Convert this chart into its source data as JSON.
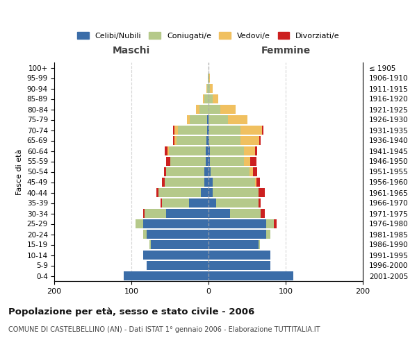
{
  "age_groups": [
    "0-4",
    "5-9",
    "10-14",
    "15-19",
    "20-24",
    "25-29",
    "30-34",
    "35-39",
    "40-44",
    "45-49",
    "50-54",
    "55-59",
    "60-64",
    "65-69",
    "70-74",
    "75-79",
    "80-84",
    "85-89",
    "90-94",
    "95-99",
    "100+"
  ],
  "birth_years": [
    "2001-2005",
    "1996-2000",
    "1991-1995",
    "1986-1990",
    "1981-1985",
    "1976-1980",
    "1971-1975",
    "1966-1970",
    "1961-1965",
    "1956-1960",
    "1951-1955",
    "1946-1950",
    "1941-1945",
    "1936-1940",
    "1931-1935",
    "1926-1930",
    "1921-1925",
    "1916-1920",
    "1911-1915",
    "1906-1910",
    "≤ 1905"
  ],
  "males_celibi": [
    110,
    80,
    85,
    75,
    80,
    85,
    55,
    25,
    10,
    5,
    5,
    4,
    4,
    3,
    2,
    2,
    0,
    0,
    0,
    0,
    0
  ],
  "males_coniugati": [
    0,
    0,
    0,
    2,
    5,
    10,
    28,
    35,
    55,
    52,
    50,
    46,
    47,
    38,
    38,
    22,
    12,
    5,
    2,
    1,
    0
  ],
  "males_vedovi": [
    0,
    0,
    0,
    0,
    0,
    0,
    0,
    0,
    0,
    0,
    0,
    0,
    2,
    3,
    4,
    4,
    4,
    2,
    1,
    0,
    0
  ],
  "males_divorziati": [
    0,
    0,
    0,
    0,
    0,
    0,
    2,
    2,
    3,
    3,
    3,
    5,
    4,
    2,
    2,
    0,
    0,
    0,
    0,
    0,
    0
  ],
  "females_nubili": [
    110,
    80,
    80,
    65,
    75,
    75,
    28,
    10,
    5,
    5,
    3,
    2,
    2,
    1,
    1,
    0,
    0,
    0,
    0,
    0,
    0
  ],
  "females_coniugate": [
    0,
    0,
    0,
    2,
    5,
    10,
    40,
    55,
    60,
    55,
    50,
    44,
    44,
    40,
    40,
    25,
    15,
    5,
    2,
    1,
    0
  ],
  "females_vedove": [
    0,
    0,
    0,
    0,
    0,
    0,
    0,
    0,
    0,
    2,
    5,
    8,
    14,
    25,
    28,
    25,
    20,
    8,
    3,
    1,
    0
  ],
  "females_divorziate": [
    0,
    0,
    0,
    0,
    0,
    3,
    5,
    3,
    8,
    5,
    5,
    8,
    3,
    2,
    2,
    0,
    0,
    0,
    0,
    0,
    0
  ],
  "color_celibi": "#3b6da8",
  "color_coniugati": "#b5c98a",
  "color_vedovi": "#f0c060",
  "color_divorziati": "#cc2020",
  "xlim": 200,
  "title": "Popolazione per età, sesso e stato civile - 2006",
  "subtitle": "COMUNE DI CASTELBELLINO (AN) - Dati ISTAT 1° gennaio 2006 - Elaborazione TUTTITALIA.IT",
  "ylabel_left": "Fasce di età",
  "label_maschi": "Maschi",
  "label_femmine": "Femmine",
  "legend_labels": [
    "Celibi/Nubili",
    "Coniugati/e",
    "Vedovi/e",
    "Divorziati/e"
  ],
  "bg_color": "#ffffff"
}
